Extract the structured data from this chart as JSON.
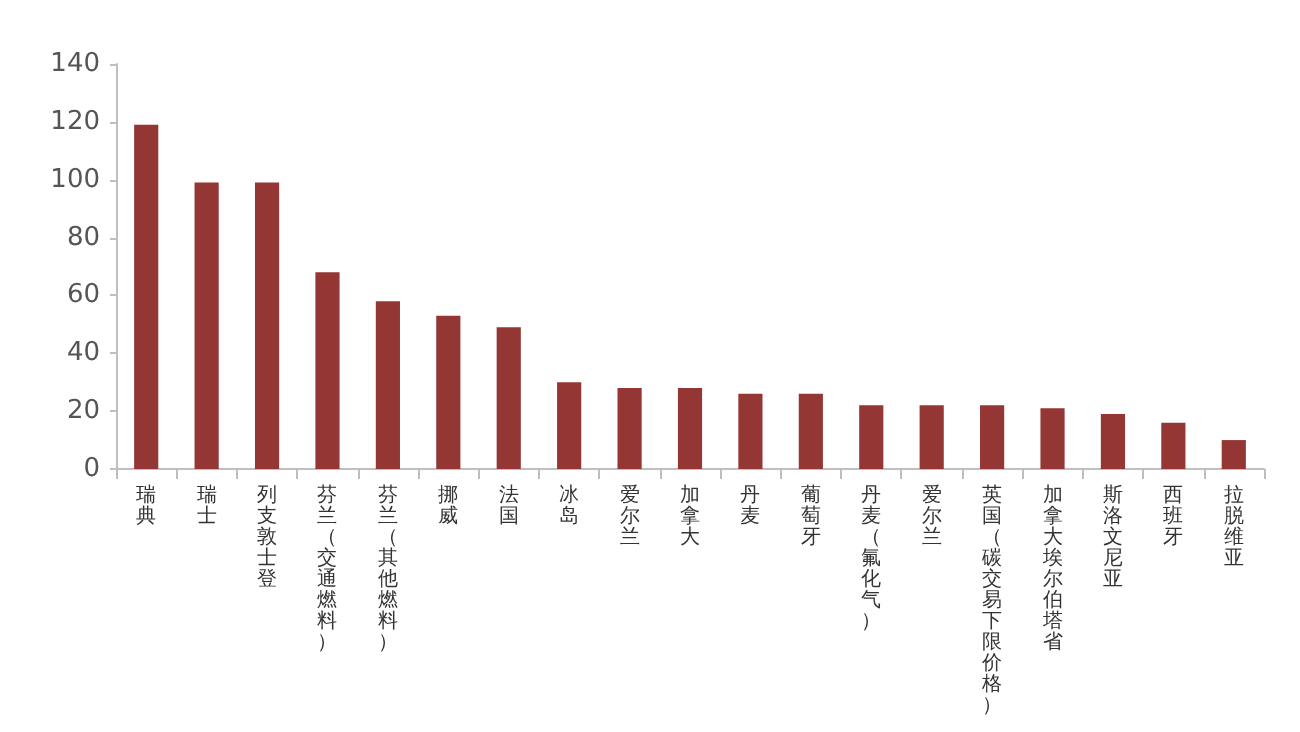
{
  "chart_data": {
    "type": "bar",
    "categories": [
      "瑞典",
      "瑞士",
      "列支敦士登",
      "芬兰（交通燃料）",
      "芬兰（其他燃料）",
      "挪威",
      "法国",
      "冰岛",
      "爱尔兰",
      "加拿大",
      "丹麦",
      "葡萄牙",
      "丹麦（氟化气）",
      "爱尔兰",
      "英国（碳交易下限价格）",
      "加拿大埃尔伯塔省",
      "斯洛文尼亚",
      "西班牙",
      "拉脱维亚"
    ],
    "values": [
      119,
      99,
      99,
      68,
      58,
      53,
      49,
      30,
      28,
      28,
      26,
      26,
      22,
      22,
      22,
      21,
      19,
      16,
      10
    ],
    "color": "#943634",
    "ylim": [
      0,
      140
    ],
    "yticks": [
      0,
      20,
      40,
      60,
      80,
      100,
      120,
      140
    ],
    "grid": false
  }
}
